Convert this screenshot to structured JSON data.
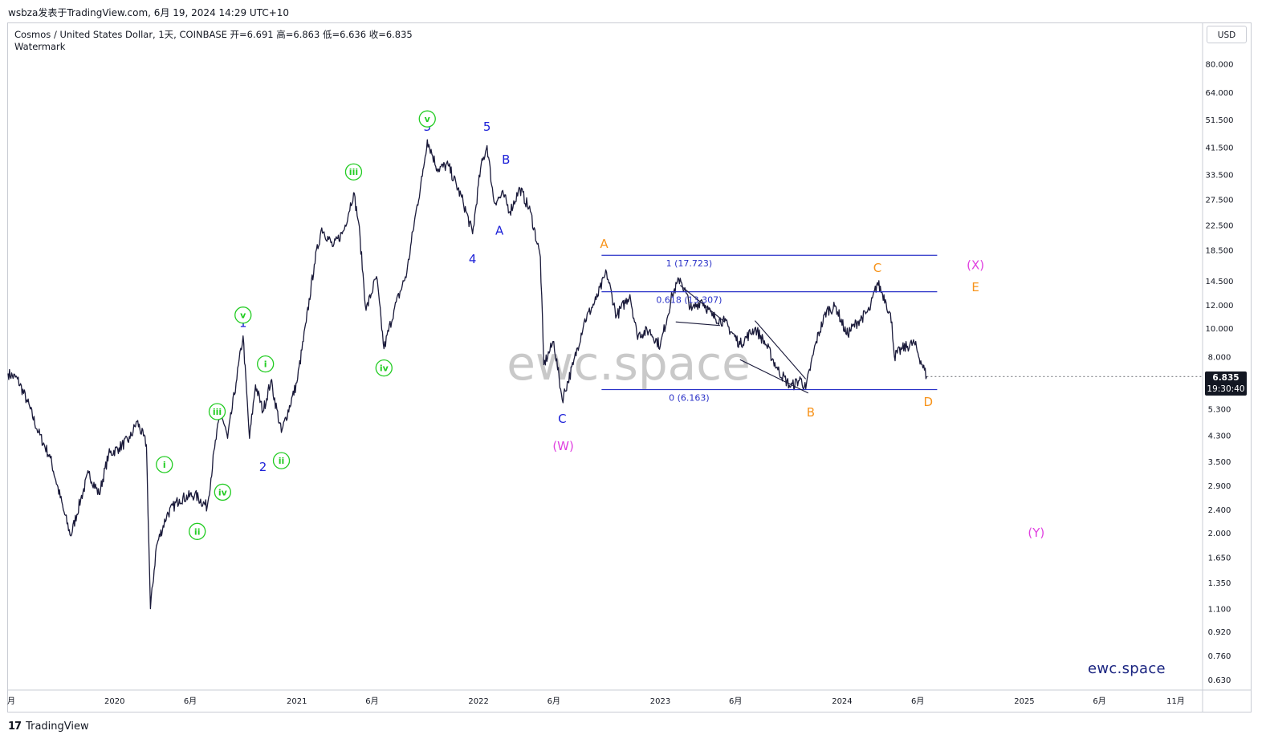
{
  "header": {
    "text": "wsbza发表于TradingView.com,  6月 19, 2024 14:29 UTC+10"
  },
  "legend": {
    "symbol_line": "Cosmos / United States Dollar, 1天, COINBASE  开=6.691  高=6.863  低=6.636  收=6.835",
    "study": "Watermark"
  },
  "currency_button": "USD",
  "watermark": {
    "center": "ewc.space",
    "brand": "ewc.space"
  },
  "footer": {
    "logo": "17",
    "brand": "TradingView"
  },
  "last_price": {
    "price": "6.835",
    "countdown": "19:30:40"
  },
  "colors": {
    "candles": "#1a1a3a",
    "wave_blue": "#1e22d8",
    "wave_green": "#22cc22",
    "wave_orange": "#f7931a",
    "wave_magenta": "#e040e0",
    "fib": "#2a32c8"
  },
  "chart_data": {
    "type": "line",
    "scale": "log",
    "ylim": [
      0.58,
      110
    ],
    "y_ticks": [
      "80.000",
      "64.000",
      "51.500",
      "41.500",
      "33.500",
      "27.500",
      "22.500",
      "18.500",
      "14.500",
      "12.000",
      "10.000",
      "8.000",
      "5.300",
      "4.300",
      "3.500",
      "2.900",
      "2.400",
      "2.000",
      "1.650",
      "1.350",
      "1.100",
      "0.920",
      "0.760",
      "0.630"
    ],
    "x_ticks": [
      "月",
      "2020",
      "6月",
      "2021",
      "6月",
      "2022",
      "6月",
      "2023",
      "6月",
      "2024",
      "6月",
      "2025",
      "6月",
      "11月"
    ],
    "series": [
      {
        "points": [
          [
            "2019-06-01",
            7.0
          ],
          [
            "2019-06-20",
            6.7
          ],
          [
            "2019-07-10",
            5.6
          ],
          [
            "2019-08-01",
            4.4
          ],
          [
            "2019-08-25",
            3.6
          ],
          [
            "2019-09-20",
            2.4
          ],
          [
            "2019-10-05",
            1.95
          ],
          [
            "2019-10-25",
            2.6
          ],
          [
            "2019-11-10",
            3.2
          ],
          [
            "2019-12-01",
            2.7
          ],
          [
            "2019-12-20",
            3.7
          ],
          [
            "2020-01-10",
            3.9
          ],
          [
            "2020-02-01",
            4.2
          ],
          [
            "2020-02-15",
            4.8
          ],
          [
            "2020-03-05",
            4.0
          ],
          [
            "2020-03-13",
            1.1
          ],
          [
            "2020-03-25",
            1.8
          ],
          [
            "2020-04-15",
            2.3
          ],
          [
            "2020-05-10",
            2.6
          ],
          [
            "2020-06-10",
            2.7
          ],
          [
            "2020-07-05",
            2.45
          ],
          [
            "2020-07-20",
            3.9
          ],
          [
            "2020-08-01",
            5.2
          ],
          [
            "2020-08-15",
            4.2
          ],
          [
            "2020-09-01",
            6.5
          ],
          [
            "2020-09-15",
            9.4
          ],
          [
            "2020-09-28",
            4.2
          ],
          [
            "2020-10-10",
            6.4
          ],
          [
            "2020-10-25",
            5.2
          ],
          [
            "2020-11-10",
            6.6
          ],
          [
            "2020-12-01",
            4.4
          ],
          [
            "2021-01-01",
            6.5
          ],
          [
            "2021-01-20",
            10.5
          ],
          [
            "2021-02-05",
            16.5
          ],
          [
            "2021-02-20",
            22.0
          ],
          [
            "2021-03-15",
            19.0
          ],
          [
            "2021-04-05",
            21.5
          ],
          [
            "2021-04-25",
            29.0
          ],
          [
            "2021-05-05",
            23.0
          ],
          [
            "2021-05-20",
            11.5
          ],
          [
            "2021-06-10",
            15.0
          ],
          [
            "2021-06-25",
            8.5
          ],
          [
            "2021-07-15",
            11.5
          ],
          [
            "2021-08-10",
            15.5
          ],
          [
            "2021-08-25",
            23.0
          ],
          [
            "2021-09-10",
            33.0
          ],
          [
            "2021-09-20",
            44.0
          ],
          [
            "2021-10-10",
            35.0
          ],
          [
            "2021-11-01",
            36.0
          ],
          [
            "2021-12-01",
            27.0
          ],
          [
            "2021-12-20",
            21.0
          ],
          [
            "2022-01-05",
            35.0
          ],
          [
            "2022-01-18",
            42.0
          ],
          [
            "2022-02-01",
            27.0
          ],
          [
            "2022-02-20",
            28.5
          ],
          [
            "2022-03-05",
            25.0
          ],
          [
            "2022-03-25",
            30.0
          ],
          [
            "2022-04-15",
            25.0
          ],
          [
            "2022-05-05",
            17.5
          ],
          [
            "2022-05-12",
            7.5
          ],
          [
            "2022-06-01",
            9.0
          ],
          [
            "2022-06-18",
            5.7
          ],
          [
            "2022-07-10",
            7.5
          ],
          [
            "2022-08-01",
            10.5
          ],
          [
            "2022-08-25",
            12.5
          ],
          [
            "2022-09-15",
            15.5
          ],
          [
            "2022-10-05",
            11.0
          ],
          [
            "2022-11-01",
            13.0
          ],
          [
            "2022-11-15",
            9.5
          ],
          [
            "2022-12-10",
            9.8
          ],
          [
            "2023-01-01",
            8.7
          ],
          [
            "2023-01-25",
            13.0
          ],
          [
            "2023-02-10",
            14.8
          ],
          [
            "2023-03-05",
            11.5
          ],
          [
            "2023-03-25",
            12.5
          ],
          [
            "2023-04-15",
            11.0
          ],
          [
            "2023-05-10",
            10.5
          ],
          [
            "2023-06-10",
            8.8
          ],
          [
            "2023-07-10",
            10.0
          ],
          [
            "2023-08-01",
            8.8
          ],
          [
            "2023-08-25",
            7.2
          ],
          [
            "2023-09-20",
            6.3
          ],
          [
            "2023-10-10",
            6.7
          ],
          [
            "2023-10-20",
            6.2
          ],
          [
            "2023-11-10",
            9.0
          ],
          [
            "2023-12-01",
            11.5
          ],
          [
            "2023-12-20",
            11.8
          ],
          [
            "2024-01-10",
            9.5
          ],
          [
            "2024-02-01",
            10.5
          ],
          [
            "2024-02-25",
            11.5
          ],
          [
            "2024-03-12",
            14.3
          ],
          [
            "2024-03-28",
            12.5
          ],
          [
            "2024-04-10",
            10.5
          ],
          [
            "2024-04-15",
            8.0
          ],
          [
            "2024-05-01",
            8.5
          ],
          [
            "2024-05-25",
            8.9
          ],
          [
            "2024-06-10",
            7.5
          ],
          [
            "2024-06-19",
            6.835
          ]
        ]
      }
    ],
    "fib_levels": [
      {
        "label": "1 (17.723)",
        "price": 17.723
      },
      {
        "label": "0.618 (13.307)",
        "price": 13.307
      },
      {
        "label": "0 (6.163)",
        "price": 6.163
      }
    ],
    "annotations": [
      {
        "t": "1",
        "d": "2020-09-15",
        "p": 9.4,
        "style": "blue",
        "pos": "above"
      },
      {
        "t": "2",
        "d": "2020-10-25",
        "p": 3.9,
        "style": "blue",
        "pos": "below"
      },
      {
        "t": "3",
        "d": "2021-09-20",
        "p": 44.0,
        "style": "blue",
        "pos": "above"
      },
      {
        "t": "4",
        "d": "2021-12-20",
        "p": 20.0,
        "style": "blue",
        "pos": "below"
      },
      {
        "t": "5",
        "d": "2022-01-18",
        "p": 44.0,
        "style": "blue",
        "pos": "above"
      },
      {
        "t": "A",
        "d": "2022-02-12",
        "p": 25.0,
        "style": "blue",
        "pos": "below"
      },
      {
        "t": "B",
        "d": "2022-02-25",
        "p": 34.0,
        "style": "blue",
        "pos": "above"
      },
      {
        "t": "C",
        "d": "2022-06-18",
        "p": 5.7,
        "style": "blue",
        "pos": "below"
      },
      {
        "t": "(W)",
        "d": "2022-06-20",
        "p": 4.6,
        "style": "magenta",
        "pos": "below"
      },
      {
        "t": "A",
        "d": "2022-09-10",
        "p": 17.5,
        "style": "orange",
        "pos": "above"
      },
      {
        "t": "B",
        "d": "2023-10-30",
        "p": 6.0,
        "style": "orange",
        "pos": "below"
      },
      {
        "t": "C",
        "d": "2024-03-12",
        "p": 14.5,
        "style": "orange",
        "pos": "above"
      },
      {
        "t": "D",
        "d": "2024-06-22",
        "p": 6.5,
        "style": "orange",
        "pos": "below"
      },
      {
        "t": "E",
        "d": "2024-09-25",
        "p": 13.8,
        "style": "orange",
        "pos": "mid"
      },
      {
        "t": "(X)",
        "d": "2024-09-25",
        "p": 16.4,
        "style": "magenta",
        "pos": "mid"
      },
      {
        "t": "(Y)",
        "d": "2025-01-25",
        "p": 2.0,
        "style": "magenta",
        "pos": "mid"
      },
      {
        "t": "i",
        "d": "2020-04-10",
        "p": 2.9,
        "style": "green",
        "pos": "above"
      },
      {
        "t": "ii",
        "d": "2020-06-15",
        "p": 2.35,
        "style": "green",
        "pos": "below"
      },
      {
        "t": "iii",
        "d": "2020-07-25",
        "p": 4.4,
        "style": "green",
        "pos": "above"
      },
      {
        "t": "iv",
        "d": "2020-08-05",
        "p": 3.2,
        "style": "green",
        "pos": "below"
      },
      {
        "t": "v",
        "d": "2020-09-15",
        "p": 9.4,
        "style": "green",
        "pos": "above"
      },
      {
        "t": "i",
        "d": "2020-10-30",
        "p": 6.4,
        "style": "green",
        "pos": "above"
      },
      {
        "t": "ii",
        "d": "2020-12-01",
        "p": 4.1,
        "style": "green",
        "pos": "below"
      },
      {
        "t": "iii",
        "d": "2021-04-25",
        "p": 29.0,
        "style": "green",
        "pos": "above"
      },
      {
        "t": "iv",
        "d": "2021-06-25",
        "p": 8.5,
        "style": "green",
        "pos": "below"
      },
      {
        "t": "v",
        "d": "2021-09-20",
        "p": 44.0,
        "style": "green",
        "pos": "above"
      }
    ],
    "lines": [
      [
        "2023-02-10",
        14.0,
        "2023-05-10",
        10.5
      ],
      [
        "2023-02-01",
        10.5,
        "2023-05-01",
        10.2
      ],
      [
        "2023-07-10",
        10.6,
        "2023-10-20",
        6.7
      ],
      [
        "2023-06-10",
        7.8,
        "2023-10-25",
        6.0
      ]
    ]
  }
}
